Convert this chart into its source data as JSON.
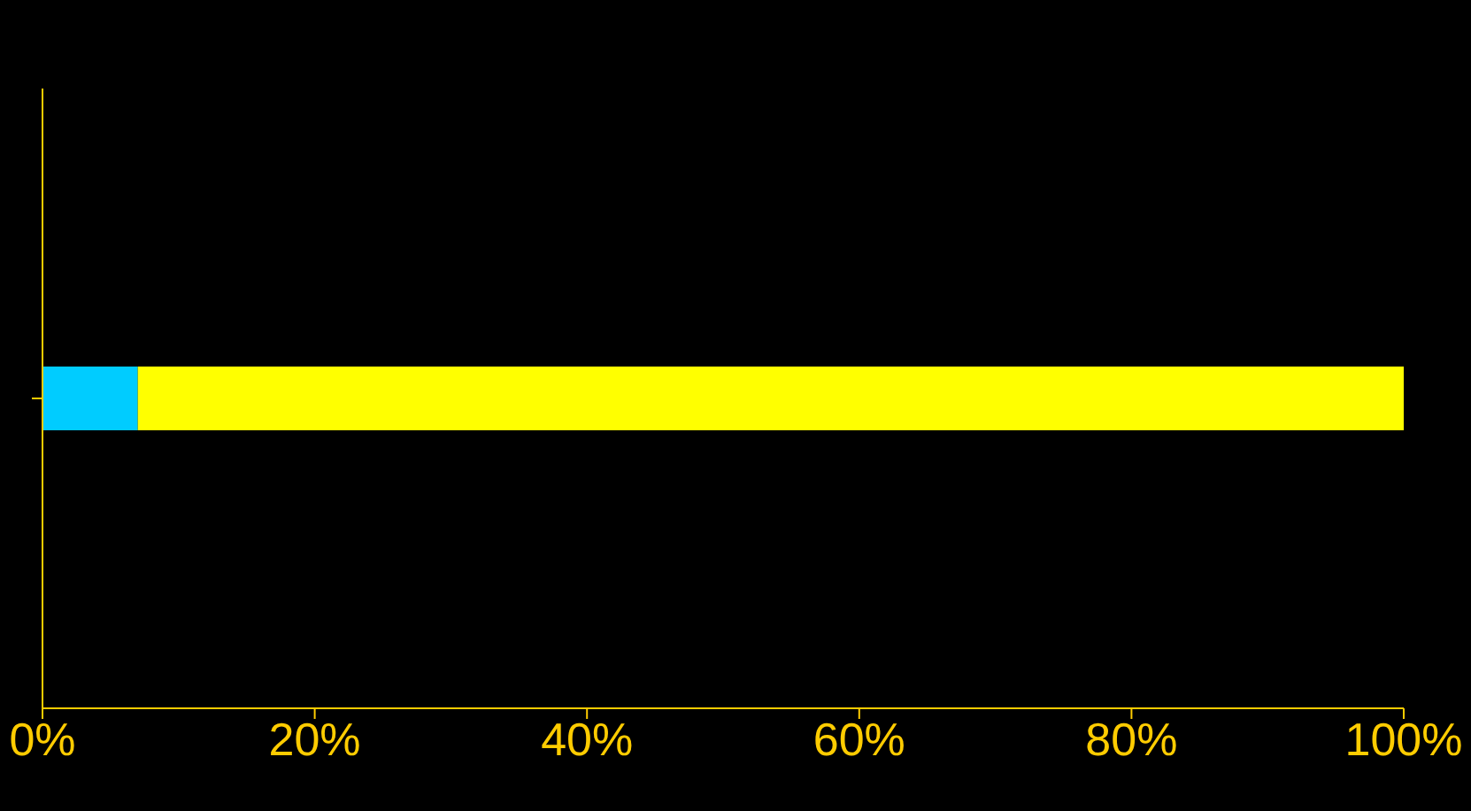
{
  "chart_data": {
    "type": "bar",
    "orientation": "horizontal",
    "stacked": true,
    "categories": [
      null
    ],
    "series": [
      {
        "color": "#00ccff",
        "values": [
          7
        ]
      },
      {
        "color": "#ffff00",
        "values": [
          93
        ]
      }
    ],
    "xlim": [
      0,
      100
    ],
    "xticks": [
      {
        "value": 0,
        "label": "0%"
      },
      {
        "value": 20,
        "label": "20%"
      },
      {
        "value": 40,
        "label": "40%"
      },
      {
        "value": 60,
        "label": "60%"
      },
      {
        "value": 80,
        "label": "80%"
      },
      {
        "value": 100,
        "label": "100%"
      }
    ],
    "grid": false,
    "legend": false
  }
}
